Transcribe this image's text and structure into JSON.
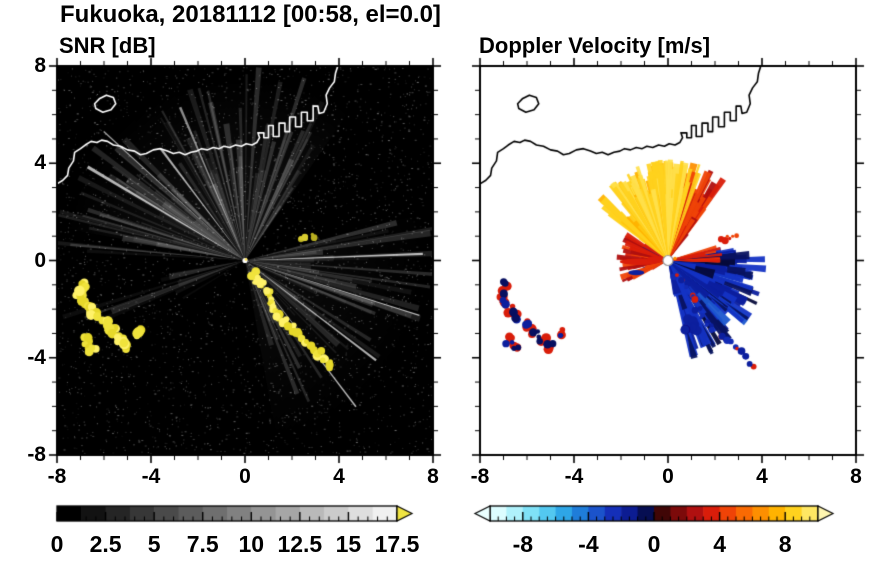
{
  "title": "Fukuoka, 20181112 [00:58, el=0.0]",
  "panels": {
    "left": {
      "title": "SNR [dB]"
    },
    "right": {
      "title": "Doppler Velocity [m/s]"
    }
  },
  "chart_data": {
    "type": "heatmap",
    "title": "Fukuoka, 20181112 [00:58, el=0.0]",
    "panels": [
      {
        "id": "snr",
        "title": "SNR [dB]",
        "xlim": [
          -8,
          8
        ],
        "ylim": [
          -8,
          8
        ],
        "xticks": [
          -8,
          -4,
          0,
          4,
          8
        ],
        "yticks": [
          -8,
          -4,
          0,
          4,
          8
        ],
        "minor_step": 1,
        "background": "#000000",
        "colorbar": {
          "min": 0,
          "max": 17.5,
          "tick_values": [
            0,
            2.5,
            5,
            7.5,
            10,
            12.5,
            15,
            17.5
          ],
          "tick_labels": [
            "0",
            "2.5",
            "5",
            "7.5",
            "10",
            "12.5",
            "15",
            "17.5"
          ],
          "minor_step": 0.5,
          "gradient": [
            "#000000",
            "#f0f0f0"
          ],
          "steps": 14,
          "over_color": "#f0e442"
        }
      },
      {
        "id": "velocity",
        "title": "Doppler Velocity [m/s]",
        "xlim": [
          -8,
          8
        ],
        "ylim": [
          -8,
          8
        ],
        "xticks": [
          -8,
          -4,
          0,
          4,
          8
        ],
        "yticks": [
          -8,
          -4,
          0,
          4,
          8
        ],
        "minor_step": 1,
        "background": "#ffffff",
        "colorbar": {
          "min": -10,
          "max": 10,
          "tick_values": [
            -8,
            -4,
            0,
            4,
            8
          ],
          "tick_labels": [
            "-8",
            "-4",
            "0",
            "4",
            "8"
          ],
          "minor_step": 0.5,
          "bands": [
            "#dcfdff",
            "#aff1fb",
            "#7fe1f7",
            "#53c8f0",
            "#2ea6e7",
            "#1f7dd9",
            "#1b53cb",
            "#142fb8",
            "#0c1c92",
            "#060e52",
            "#400606",
            "#7c0a0a",
            "#b01010",
            "#d91d0a",
            "#ef4307",
            "#f96a03",
            "#fd8f01",
            "#ffb300",
            "#ffd21e",
            "#ffe763"
          ],
          "under_color": "#eaffff",
          "over_color": "#fff6b0"
        }
      }
    ],
    "features": {
      "radar_center": [
        0,
        0
      ],
      "coastline": [
        [
          -8,
          3.15
        ],
        [
          -7.75,
          3.3
        ],
        [
          -7.55,
          3.5
        ],
        [
          -7.5,
          3.8
        ],
        [
          -7.3,
          4.1
        ],
        [
          -7.25,
          4.45
        ],
        [
          -7.0,
          4.6
        ],
        [
          -6.8,
          4.75
        ],
        [
          -6.55,
          4.9
        ],
        [
          -6.3,
          4.85
        ],
        [
          -6.1,
          4.95
        ],
        [
          -5.85,
          4.9
        ],
        [
          -5.6,
          4.75
        ],
        [
          -5.3,
          4.7
        ],
        [
          -5.0,
          4.55
        ],
        [
          -4.7,
          4.5
        ],
        [
          -4.45,
          4.35
        ],
        [
          -4.2,
          4.4
        ],
        [
          -3.9,
          4.55
        ],
        [
          -3.6,
          4.6
        ],
        [
          -3.3,
          4.5
        ],
        [
          -3.05,
          4.4
        ],
        [
          -2.8,
          4.45
        ],
        [
          -2.55,
          4.35
        ],
        [
          -2.3,
          4.45
        ],
        [
          -2.05,
          4.5
        ],
        [
          -1.85,
          4.6
        ],
        [
          -1.6,
          4.55
        ],
        [
          -1.35,
          4.65
        ],
        [
          -1.1,
          4.6
        ],
        [
          -0.9,
          4.7
        ],
        [
          -0.65,
          4.65
        ],
        [
          -0.4,
          4.75
        ],
        [
          -0.15,
          4.7
        ],
        [
          0.05,
          4.8
        ],
        [
          0.3,
          4.75
        ],
        [
          0.5,
          4.85
        ],
        [
          0.62,
          5.05
        ],
        [
          0.55,
          5.25
        ],
        [
          0.8,
          5.25
        ],
        [
          0.8,
          5.05
        ],
        [
          1.0,
          5.05
        ],
        [
          1.0,
          5.55
        ],
        [
          1.2,
          5.55
        ],
        [
          1.2,
          5.1
        ],
        [
          1.45,
          5.1
        ],
        [
          1.45,
          5.65
        ],
        [
          1.7,
          5.65
        ],
        [
          1.7,
          5.3
        ],
        [
          1.9,
          5.3
        ],
        [
          1.9,
          5.9
        ],
        [
          2.15,
          5.9
        ],
        [
          2.15,
          5.5
        ],
        [
          2.4,
          5.5
        ],
        [
          2.4,
          6.1
        ],
        [
          2.65,
          6.1
        ],
        [
          2.65,
          5.75
        ],
        [
          2.9,
          5.75
        ],
        [
          2.9,
          6.35
        ],
        [
          3.1,
          6.35
        ],
        [
          3.15,
          6.05
        ],
        [
          3.35,
          6.1
        ],
        [
          3.5,
          6.45
        ],
        [
          3.45,
          6.8
        ],
        [
          3.6,
          7.1
        ],
        [
          3.8,
          7.35
        ],
        [
          3.85,
          7.7
        ],
        [
          3.95,
          8.0
        ]
      ],
      "island": [
        [
          -6.35,
          6.25
        ],
        [
          -6.05,
          6.1
        ],
        [
          -5.7,
          6.2
        ],
        [
          -5.5,
          6.45
        ],
        [
          -5.6,
          6.7
        ],
        [
          -5.9,
          6.8
        ],
        [
          -6.2,
          6.65
        ],
        [
          -6.4,
          6.45
        ]
      ],
      "echo_arc": [
        [
          0.35,
          -0.55
        ],
        [
          0.55,
          -0.8
        ],
        [
          0.75,
          -1.05
        ],
        [
          0.95,
          -1.35
        ],
        [
          1.1,
          -1.65
        ],
        [
          1.25,
          -1.95
        ],
        [
          1.45,
          -2.25
        ],
        [
          1.7,
          -2.55
        ],
        [
          1.95,
          -2.8
        ],
        [
          2.25,
          -3.05
        ],
        [
          2.55,
          -3.3
        ],
        [
          2.85,
          -3.55
        ],
        [
          3.1,
          -3.8
        ],
        [
          3.35,
          -4.05
        ],
        [
          3.55,
          -4.3
        ]
      ],
      "echo_cluster_west": [
        [
          -6.95,
          -1.0
        ],
        [
          -7.1,
          -1.35
        ],
        [
          -6.9,
          -1.7
        ],
        [
          -6.65,
          -2.0
        ],
        [
          -6.45,
          -2.3
        ],
        [
          -5.95,
          -2.6
        ],
        [
          -5.65,
          -2.9
        ],
        [
          -5.35,
          -3.25
        ],
        [
          -5.05,
          -3.5
        ],
        [
          -4.5,
          -2.95
        ],
        [
          -6.75,
          -3.3
        ],
        [
          -6.5,
          -3.6
        ]
      ],
      "echo_spur": [
        [
          2.35,
          0.85
        ],
        [
          2.6,
          0.92
        ],
        [
          2.85,
          1.02
        ]
      ],
      "echo_blob_se": [
        [
          0.95,
          -2.55
        ],
        [
          1.15,
          -2.8
        ],
        [
          0.8,
          -2.85
        ]
      ],
      "snr_fan": {
        "haze": [
          {
            "from": 55,
            "to": 170,
            "alpha": 0.085
          },
          {
            "from": -80,
            "to": 15,
            "alpha": 0.05
          }
        ],
        "sectors": [
          {
            "from": 55,
            "to": 170,
            "count": 85
          },
          {
            "from": -78,
            "to": 15,
            "count": 55
          },
          {
            "from": 168,
            "to": 212,
            "count": 14
          }
        ],
        "bright_rays": [
          112,
          127,
          137,
          150,
          -18,
          -38,
          -52,
          2
        ]
      },
      "velocity_fan": {
        "positive": {
          "from": 55,
          "to": 140,
          "count": 175
        },
        "negative": {
          "from": -75,
          "to": 12,
          "count": 185
        },
        "west_red": {
          "from": 148,
          "to": 206,
          "count": 42
        },
        "boundary_red": {
          "from": -2,
          "to": 18,
          "count": 12
        }
      }
    }
  }
}
